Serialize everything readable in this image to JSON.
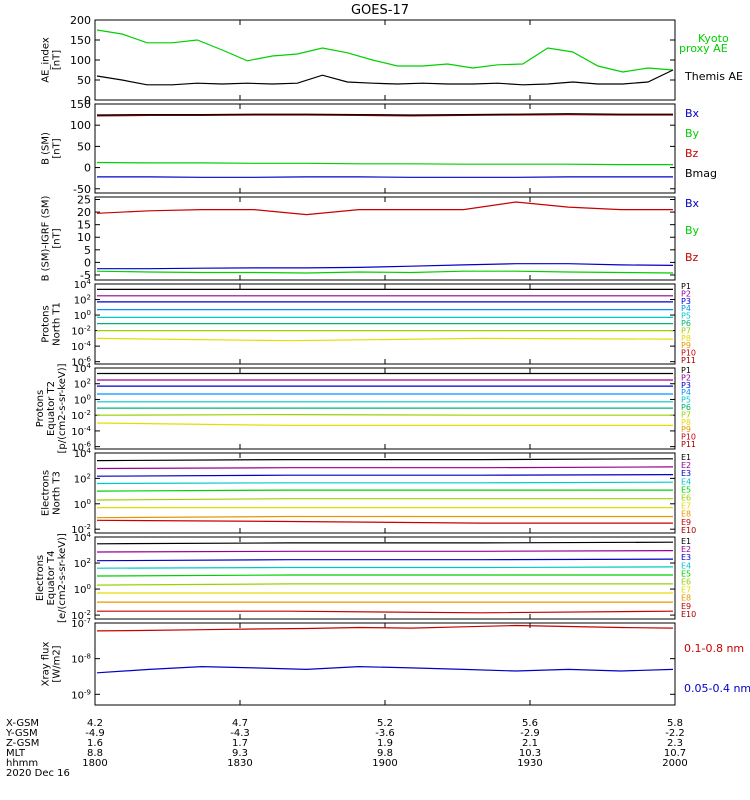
{
  "title": "GOES-17",
  "colors": {
    "green": "#00d000",
    "black": "#000000",
    "blue": "#0000c8",
    "red": "#c80000",
    "navy": "#000096",
    "cyan": "#00c8c8",
    "teal": "#00b46e",
    "lime": "#9ad200",
    "yellow": "#e6dc00",
    "orange": "#e69600",
    "darkred": "#a00000",
    "magenta": "#960096",
    "deepgreen": "#008c00"
  },
  "chart_data": [
    {
      "type": "line",
      "title": "AE index",
      "ylabel": "AE_index",
      "yunits": "[nT]",
      "ylim": [
        0,
        200
      ],
      "yticks": [
        "0",
        "50",
        "100",
        "150",
        "200"
      ],
      "legend": [
        "Kyoto",
        "proxy AE",
        "Themis AE"
      ],
      "series": [
        {
          "name": "Kyoto proxy AE",
          "values": [
            175,
            165,
            143,
            143,
            150,
            125,
            98,
            110,
            115,
            130,
            118,
            100,
            85,
            85,
            90,
            80,
            88,
            90,
            130,
            120,
            85,
            70,
            80,
            75
          ]
        },
        {
          "name": "Themis AE",
          "values": [
            60,
            50,
            38,
            38,
            42,
            40,
            42,
            40,
            42,
            62,
            45,
            42,
            40,
            42,
            40,
            40,
            42,
            38,
            40,
            45,
            40,
            40,
            45,
            75
          ]
        }
      ]
    },
    {
      "type": "line",
      "title": "B (SM)",
      "ylabel": "B (SM)",
      "yunits": "[nT]",
      "ylim": [
        -60,
        150
      ],
      "yticks": [
        "-50",
        "0",
        "50",
        "100",
        "150"
      ],
      "legend": [
        "Bx",
        "By",
        "Bz",
        "Bmag"
      ],
      "series": [
        {
          "name": "Bx",
          "values": [
            -22,
            -22,
            -23,
            -23,
            -22,
            -22,
            -23,
            -23,
            -23,
            -22,
            -22,
            -22
          ]
        },
        {
          "name": "By",
          "values": [
            12,
            11,
            11,
            10,
            10,
            9,
            9,
            8,
            8,
            8,
            7,
            7
          ]
        },
        {
          "name": "Bz",
          "values": [
            122,
            123,
            123,
            124,
            124,
            123,
            122,
            123,
            124,
            125,
            124,
            124
          ]
        },
        {
          "name": "Bmag",
          "values": [
            124,
            125,
            125,
            126,
            126,
            125,
            124,
            125,
            126,
            127,
            126,
            126
          ]
        }
      ]
    },
    {
      "type": "line",
      "title": "B (SM)-IGRF (SM)",
      "ylabel": "B (SM)-IGRF (SM)",
      "yunits": "[nT]",
      "ylim": [
        -7,
        26
      ],
      "yticks": [
        "-5",
        "0",
        "5",
        "10",
        "15",
        "20",
        "25"
      ],
      "legend": [
        "Bx",
        "By",
        "Bz"
      ],
      "series": [
        {
          "name": "Bx",
          "values": [
            -2.5,
            -2.5,
            -2.3,
            -2.2,
            -2.2,
            -2.0,
            -1.5,
            -1.0,
            -0.5,
            -0.5,
            -1.0,
            -1.2
          ]
        },
        {
          "name": "By",
          "values": [
            -3.5,
            -3.8,
            -4.0,
            -4.0,
            -4.2,
            -3.8,
            -4.0,
            -3.5,
            -3.5,
            -3.8,
            -4.0,
            -4.2
          ]
        },
        {
          "name": "Bz",
          "values": [
            19.5,
            20.5,
            21,
            21,
            19,
            21,
            21,
            21,
            24,
            22,
            21,
            21
          ]
        }
      ]
    },
    {
      "type": "line",
      "title": "Protons North T1",
      "ylabel": "Protons North T1",
      "yscale": "log",
      "yticks": [
        "10-6",
        "10-4",
        "10-2",
        "100",
        "102",
        "104"
      ],
      "legend": [
        "P1",
        "P2",
        "P3",
        "P4",
        "P5",
        "P6",
        "P7",
        "P8",
        "P9",
        "P10",
        "P11"
      ],
      "series": [
        {
          "name": "P1",
          "values": [
            2000,
            2000,
            2000,
            2000
          ]
        },
        {
          "name": "P2",
          "values": [
            300,
            300,
            300,
            300
          ]
        },
        {
          "name": "P3",
          "values": [
            50,
            50,
            50,
            50
          ]
        },
        {
          "name": "P4",
          "values": [
            5,
            5,
            5,
            5
          ]
        },
        {
          "name": "P5",
          "values": [
            0.5,
            0.5,
            0.5,
            0.5
          ]
        },
        {
          "name": "P6",
          "values": [
            0.08,
            0.08,
            0.08,
            0.08
          ]
        },
        {
          "name": "P7",
          "values": [
            0.01,
            0.01,
            0.01,
            0.01
          ]
        },
        {
          "name": "P8",
          "values": [
            0.001,
            0.0005,
            0.001,
            0.0008
          ]
        }
      ]
    },
    {
      "type": "line",
      "title": "Protons Equator T2",
      "ylabel": "Protons Equator T2",
      "yunits": "[p/(cm2-s-sr-keV)]",
      "yscale": "log",
      "yticks": [
        "10-6",
        "10-4",
        "10-2",
        "100",
        "102",
        "104"
      ],
      "legend": [
        "P1",
        "P2",
        "P3",
        "P4",
        "P5",
        "P6",
        "P7",
        "P8",
        "P9",
        "P10",
        "P11"
      ],
      "series": [
        {
          "name": "P1",
          "values": [
            2000,
            2000,
            2000,
            2000
          ]
        },
        {
          "name": "P2",
          "values": [
            300,
            300,
            300,
            300
          ]
        },
        {
          "name": "P3",
          "values": [
            50,
            50,
            50,
            50
          ]
        },
        {
          "name": "P4",
          "values": [
            5,
            5,
            5,
            5
          ]
        },
        {
          "name": "P5",
          "values": [
            0.5,
            0.5,
            0.5,
            0.5
          ]
        },
        {
          "name": "P6",
          "values": [
            0.08,
            0.08,
            0.08,
            0.08
          ]
        },
        {
          "name": "P7",
          "values": [
            0.01,
            0.012,
            0.01,
            0.01
          ]
        },
        {
          "name": "P8",
          "values": [
            0.001,
            0.0005,
            0.0005,
            0.0005
          ]
        }
      ]
    },
    {
      "type": "line",
      "title": "Electrons North T3",
      "ylabel": "Electrons North T3",
      "yscale": "log",
      "yticks": [
        "10-2",
        "100",
        "102",
        "104"
      ],
      "legend": [
        "E1",
        "E2",
        "E3",
        "E4",
        "E5",
        "E6",
        "E7",
        "E8",
        "E9",
        "E10"
      ],
      "series": [
        {
          "name": "E1",
          "values": [
            2500,
            3000,
            3000,
            3500
          ]
        },
        {
          "name": "E2",
          "values": [
            600,
            700,
            700,
            800
          ]
        },
        {
          "name": "E3",
          "values": [
            150,
            180,
            180,
            200
          ]
        },
        {
          "name": "E4",
          "values": [
            40,
            45,
            45,
            50
          ]
        },
        {
          "name": "E5",
          "values": [
            10,
            12,
            12,
            12
          ]
        },
        {
          "name": "E6",
          "values": [
            2,
            2.5,
            2.5,
            2.5
          ]
        },
        {
          "name": "E7",
          "values": [
            0.5,
            0.5,
            0.5,
            0.5
          ]
        },
        {
          "name": "E8",
          "values": [
            0.08,
            0.1,
            0.1,
            0.1
          ]
        },
        {
          "name": "E9",
          "values": [
            0.05,
            0.04,
            0.03,
            0.03
          ]
        }
      ]
    },
    {
      "type": "line",
      "title": "Electrons Equator T4",
      "ylabel": "Electrons Equator T4",
      "yunits": "[e/(cm2-s-sr-keV)]",
      "yscale": "log",
      "yticks": [
        "10-2",
        "100",
        "102",
        "104"
      ],
      "legend": [
        "E1",
        "E2",
        "E3",
        "E4",
        "E5",
        "E6",
        "E7",
        "E8",
        "E9",
        "E10"
      ],
      "series": [
        {
          "name": "E1",
          "values": [
            3000,
            3500,
            3500,
            4000
          ]
        },
        {
          "name": "E2",
          "values": [
            700,
            800,
            800,
            900
          ]
        },
        {
          "name": "E3",
          "values": [
            150,
            180,
            180,
            200
          ]
        },
        {
          "name": "E4",
          "values": [
            40,
            45,
            45,
            50
          ]
        },
        {
          "name": "E5",
          "values": [
            10,
            12,
            12,
            12
          ]
        },
        {
          "name": "E6",
          "values": [
            2,
            2.5,
            2.5,
            2.5
          ]
        },
        {
          "name": "E7",
          "values": [
            0.5,
            0.5,
            0.5,
            0.5
          ]
        },
        {
          "name": "E8",
          "values": [
            0.1,
            0.1,
            0.1,
            0.1
          ]
        },
        {
          "name": "E9",
          "values": [
            0.02,
            0.02,
            0.015,
            0.02
          ]
        }
      ]
    },
    {
      "type": "line",
      "title": "Xray flux",
      "ylabel": "Xray flux",
      "yunits": "[W/m2]",
      "yscale": "log",
      "yticks": [
        "10-9",
        "10-8",
        "10-7"
      ],
      "legend": [
        "0.1-0.8 nm",
        "0.05-0.4 nm"
      ],
      "series": [
        {
          "name": "0.1-0.8 nm",
          "values": [
            6e-08,
            6.2e-08,
            6.5e-08,
            6.8e-08,
            7e-08,
            7.5e-08,
            7.2e-08,
            7.8e-08,
            8.5e-08,
            8e-08,
            7.5e-08,
            7.2e-08
          ]
        },
        {
          "name": "0.05-0.4 nm",
          "values": [
            4e-09,
            5e-09,
            6e-09,
            5.5e-09,
            5e-09,
            6e-09,
            5.5e-09,
            5e-09,
            4.5e-09,
            5e-09,
            4.5e-09,
            5e-09
          ]
        }
      ]
    }
  ],
  "orbit": {
    "labels": [
      "X-GSM",
      "Y-GSM",
      "Z-GSM",
      "MLT",
      "hhmm",
      "2020 Dec 16"
    ],
    "ticks": [
      {
        "x": "4.2",
        "y": "-4.9",
        "z": "1.6",
        "mlt": "8.8",
        "hhmm": "1800"
      },
      {
        "x": "4.7",
        "y": "-4.3",
        "z": "1.7",
        "mlt": "9.3",
        "hhmm": "1830"
      },
      {
        "x": "5.2",
        "y": "-3.6",
        "z": "1.9",
        "mlt": "9.8",
        "hhmm": "1900"
      },
      {
        "x": "5.6",
        "y": "-2.9",
        "z": "2.1",
        "mlt": "10.3",
        "hhmm": "1930"
      },
      {
        "x": "5.8",
        "y": "-2.2",
        "z": "2.3",
        "mlt": "10.7",
        "hhmm": "2000"
      }
    ]
  }
}
